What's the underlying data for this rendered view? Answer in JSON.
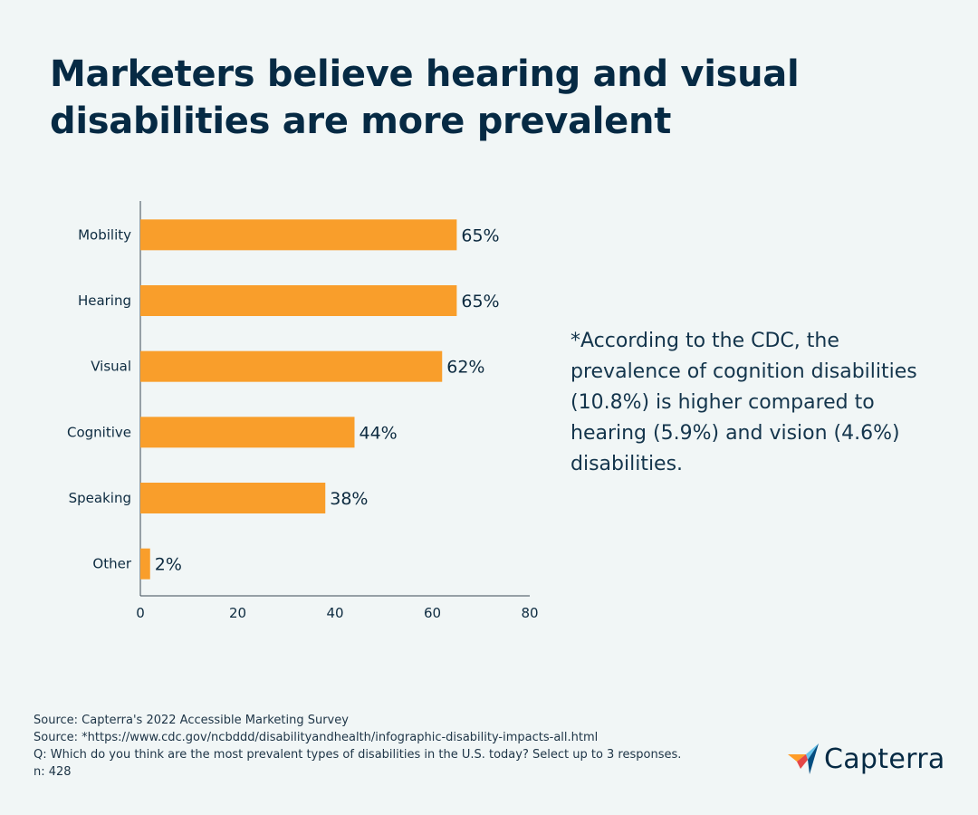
{
  "title": "Marketers believe hearing and visual disabilities are more prevalent",
  "note": "*According to the CDC, the prevalence of cognition disabilities (10.8%) is higher compared to hearing (5.9%) and vision (4.6%) disabilities.",
  "sources": {
    "line1": "Source: Capterra's 2022 Accessible Marketing Survey",
    "line2": "Source: *https://www.cdc.gov/ncbddd/disabilityandhealth/infographic-disability-impacts-all.html",
    "line3": "Q: Which do you think are the most prevalent types of disabilities in the U.S. today? Select up to 3 responses.",
    "line4": "n: 428"
  },
  "logo": {
    "text": "Capterra",
    "icon": "capterra-arrow-logo-icon"
  },
  "colors": {
    "bar": "#f99e2b",
    "text": "#0d2b40",
    "background": "#f1f6f6",
    "axis": "#3a4a55"
  },
  "chart_data": {
    "type": "bar",
    "orientation": "horizontal",
    "categories": [
      "Mobility",
      "Hearing",
      "Visual",
      "Cognitive",
      "Speaking",
      "Other"
    ],
    "values": [
      65,
      65,
      62,
      44,
      38,
      2
    ],
    "data_labels": [
      "65%",
      "65%",
      "62%",
      "44%",
      "38%",
      "2%"
    ],
    "xlim": [
      0,
      80
    ],
    "xticks": [
      0,
      20,
      40,
      60,
      80
    ],
    "grid": false,
    "legend": "none"
  }
}
